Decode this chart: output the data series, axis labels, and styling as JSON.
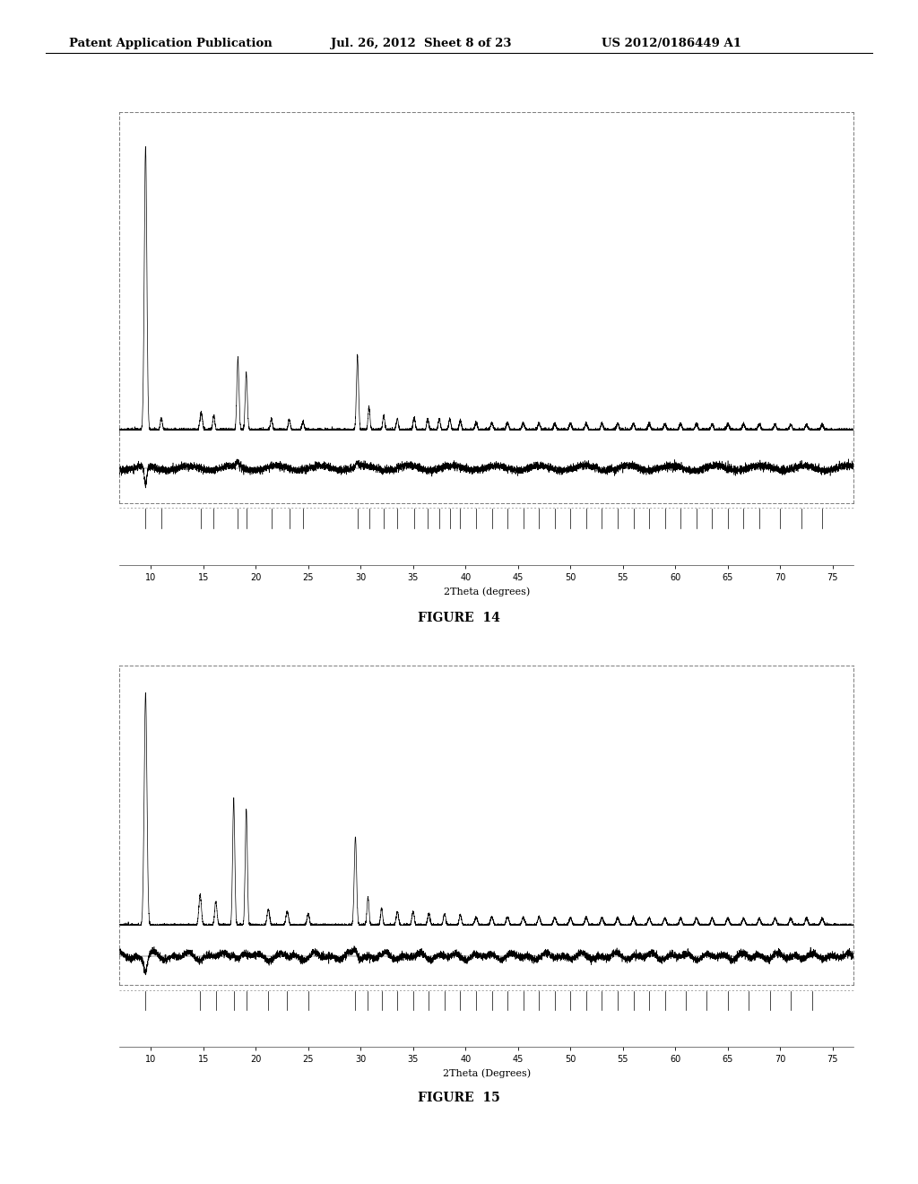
{
  "header_left": "Patent Application Publication",
  "header_mid": "Jul. 26, 2012  Sheet 8 of 23",
  "header_right": "US 2012/0186449 A1",
  "figure14_caption": "FIGURE  14",
  "figure15_caption": "FIGURE  15",
  "xlabel14": "2Theta (degrees)",
  "xlabel15": "2Theta (Degrees)",
  "xmin": 7,
  "xmax": 77,
  "xticks": [
    10,
    15,
    20,
    25,
    30,
    35,
    40,
    45,
    50,
    55,
    60,
    65,
    70,
    75
  ],
  "bg_color": "#ffffff",
  "line_color": "#000000"
}
